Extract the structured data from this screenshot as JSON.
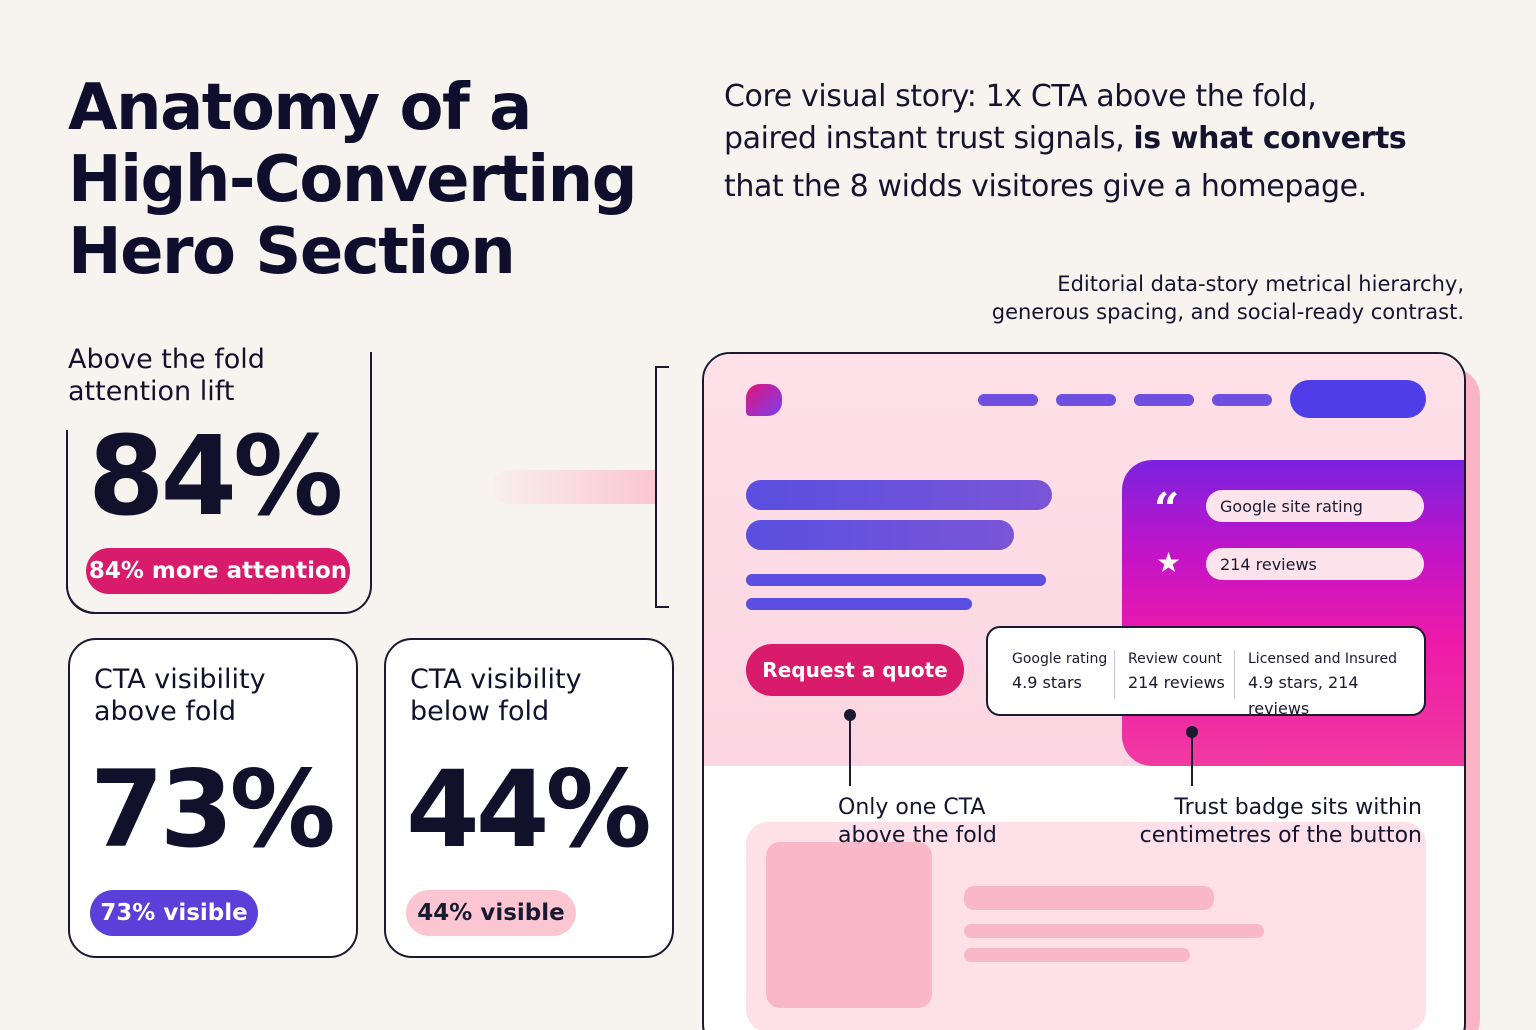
{
  "title": {
    "line1": "Anatomy of a",
    "line2": "High-Converting",
    "line3": "Hero Section"
  },
  "intro": {
    "line1": "Core visual story: 1x CTA above the fold,",
    "line2_regular": "paired instant trust signals, ",
    "line2_bold": "is what converts",
    "line3": "that the 8 widds visitores give a homepage."
  },
  "subline": {
    "line1": "Editorial data-story metrical hierarchy,",
    "line2": "generous spacing, and social-ready contrast."
  },
  "stat_attention": {
    "label_line1": "Above the fold",
    "label_line2": "attention lift",
    "value": "84%",
    "pill": "84% more attention"
  },
  "stat_above": {
    "label_line1": "CTA visibility",
    "label_line2": "above fold",
    "value": "73%",
    "pill": "73% visible"
  },
  "stat_below": {
    "label_line1": "CTA visibility",
    "label_line2": "below fold",
    "value": "44%",
    "pill": "44% visible"
  },
  "mockup": {
    "cta_label": "Request a quote",
    "trust_pills": [
      "Google site rating",
      "214 reviews"
    ],
    "quote_icon": "quote-icon",
    "star_icon": "star-icon",
    "badge": [
      {
        "key": "Google rating",
        "value": "4.9 stars"
      },
      {
        "key": "Review count",
        "value": "214 reviews"
      },
      {
        "key": "Licensed and Insured",
        "value": "4.9 stars, 214 reviews"
      }
    ],
    "annotation_cta": {
      "line1": "Only one CTA",
      "line2": "above the fold"
    },
    "annotation_badge": {
      "line1": "Trust badge sits within",
      "line2": "centimetres of the button"
    }
  },
  "colors": {
    "background": "#f7f4ef",
    "ink": "#0f0e2c",
    "magenta": "#d81b6a",
    "purple": "#5b3fd9",
    "pink": "#fbc6d2"
  }
}
